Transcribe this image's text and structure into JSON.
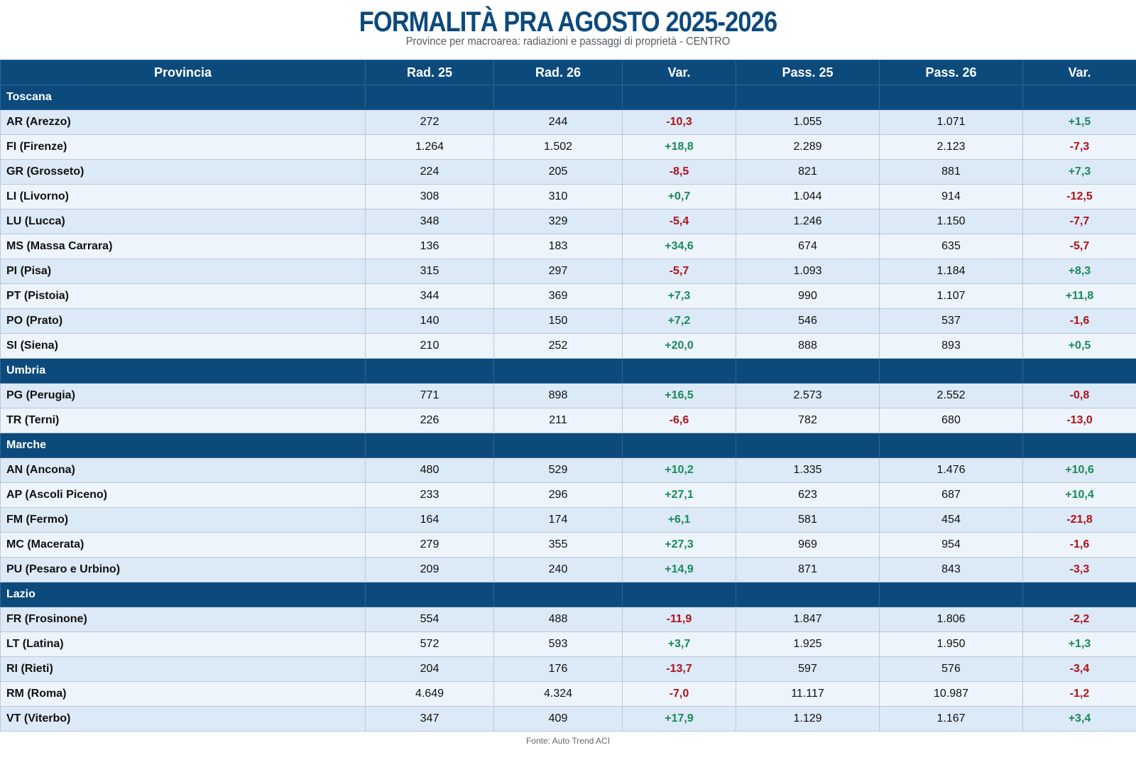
{
  "title": "FORMALITÀ PRA AGOSTO 2025-2026",
  "subtitle": "Province per macroarea: radiazioni e passaggi di proprietà - CENTRO",
  "colors": {
    "header_bg": "#0d4a7c",
    "positive": "#1a8a5a",
    "negative": "#b0121b",
    "row_odd": "#dce9f6",
    "row_even": "#edf4fb"
  },
  "columns": [
    "Provincia",
    "Rad. 25",
    "Rad. 26",
    "Var.",
    "Pass. 25",
    "Pass. 26",
    "Var."
  ],
  "regions": [
    {
      "name": "Toscana",
      "rows": [
        [
          "AR (Arezzo)",
          "272",
          "244",
          "-10,3",
          "1.055",
          "1.071",
          "+1,5"
        ],
        [
          "FI (Firenze)",
          "1.264",
          "1.502",
          "+18,8",
          "2.289",
          "2.123",
          "-7,3"
        ],
        [
          "GR (Grosseto)",
          "224",
          "205",
          "-8,5",
          "821",
          "881",
          "+7,3"
        ],
        [
          "LI (Livorno)",
          "308",
          "310",
          "+0,7",
          "1.044",
          "914",
          "-12,5"
        ],
        [
          "LU (Lucca)",
          "348",
          "329",
          "-5,4",
          "1.246",
          "1.150",
          "-7,7"
        ],
        [
          "MS (Massa Carrara)",
          "136",
          "183",
          "+34,6",
          "674",
          "635",
          "-5,7"
        ],
        [
          "PI (Pisa)",
          "315",
          "297",
          "-5,7",
          "1.093",
          "1.184",
          "+8,3"
        ],
        [
          "PT (Pistoia)",
          "344",
          "369",
          "+7,3",
          "990",
          "1.107",
          "+11,8"
        ],
        [
          "PO (Prato)",
          "140",
          "150",
          "+7,2",
          "546",
          "537",
          "-1,6"
        ],
        [
          "SI (Siena)",
          "210",
          "252",
          "+20,0",
          "888",
          "893",
          "+0,5"
        ]
      ]
    },
    {
      "name": "Umbria",
      "rows": [
        [
          "PG (Perugia)",
          "771",
          "898",
          "+16,5",
          "2.573",
          "2.552",
          "-0,8"
        ],
        [
          "TR (Terni)",
          "226",
          "211",
          "-6,6",
          "782",
          "680",
          "-13,0"
        ]
      ]
    },
    {
      "name": "Marche",
      "rows": [
        [
          "AN (Ancona)",
          "480",
          "529",
          "+10,2",
          "1.335",
          "1.476",
          "+10,6"
        ],
        [
          "AP (Ascoli Piceno)",
          "233",
          "296",
          "+27,1",
          "623",
          "687",
          "+10,4"
        ],
        [
          "FM (Fermo)",
          "164",
          "174",
          "+6,1",
          "581",
          "454",
          "-21,8"
        ],
        [
          "MC (Macerata)",
          "279",
          "355",
          "+27,3",
          "969",
          "954",
          "-1,6"
        ],
        [
          "PU (Pesaro e Urbino)",
          "209",
          "240",
          "+14,9",
          "871",
          "843",
          "-3,3"
        ]
      ]
    },
    {
      "name": "Lazio",
      "rows": [
        [
          "FR (Frosinone)",
          "554",
          "488",
          "-11,9",
          "1.847",
          "1.806",
          "-2,2"
        ],
        [
          "LT (Latina)",
          "572",
          "593",
          "+3,7",
          "1.925",
          "1.950",
          "+1,3"
        ],
        [
          "RI (Rieti)",
          "204",
          "176",
          "-13,7",
          "597",
          "576",
          "-3,4"
        ],
        [
          "RM (Roma)",
          "4.649",
          "4.324",
          "-7,0",
          "11.117",
          "10.987",
          "-1,2"
        ],
        [
          "VT (Viterbo)",
          "347",
          "409",
          "+17,9",
          "1.129",
          "1.167",
          "+3,4"
        ]
      ]
    }
  ],
  "footer": "Fonte: Auto Trend ACI"
}
